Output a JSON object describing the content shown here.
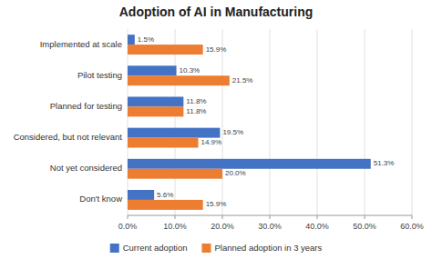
{
  "chart_data": {
    "type": "bar",
    "orientation": "horizontal",
    "title": "Adoption of AI in Manufacturing",
    "categories": [
      "Implemented at scale",
      "Pilot testing",
      "Planned for testing",
      "Considered, but not relevant",
      "Not yet considered",
      "Don't know"
    ],
    "series": [
      {
        "name": "Current adoption",
        "color": "#4472c4",
        "values": [
          1.5,
          10.3,
          11.8,
          19.5,
          51.3,
          5.6
        ],
        "value_labels": [
          "1.5%",
          "10.3%",
          "11.8%",
          "19.5%",
          "51.3%",
          "5.6%"
        ]
      },
      {
        "name": "Planned adoption in 3 years",
        "color": "#ed7d31",
        "values": [
          15.9,
          21.5,
          11.8,
          14.9,
          20.0,
          15.9
        ],
        "value_labels": [
          "15.9%",
          "21.5%",
          "11.8%",
          "14.9%",
          "20.0%",
          "15.9%"
        ]
      }
    ],
    "xlim": [
      0,
      60
    ],
    "xticks": [
      {
        "value": 0,
        "label": "0.0%"
      },
      {
        "value": 10,
        "label": "10.0%"
      },
      {
        "value": 20,
        "label": "20.0%"
      },
      {
        "value": 30,
        "label": "30.0%"
      },
      {
        "value": 40,
        "label": "40.0%"
      },
      {
        "value": 50,
        "label": "50.0%"
      },
      {
        "value": 60,
        "label": "60.0%"
      }
    ],
    "grid": true,
    "data_labels": true,
    "legend": "bottom"
  }
}
